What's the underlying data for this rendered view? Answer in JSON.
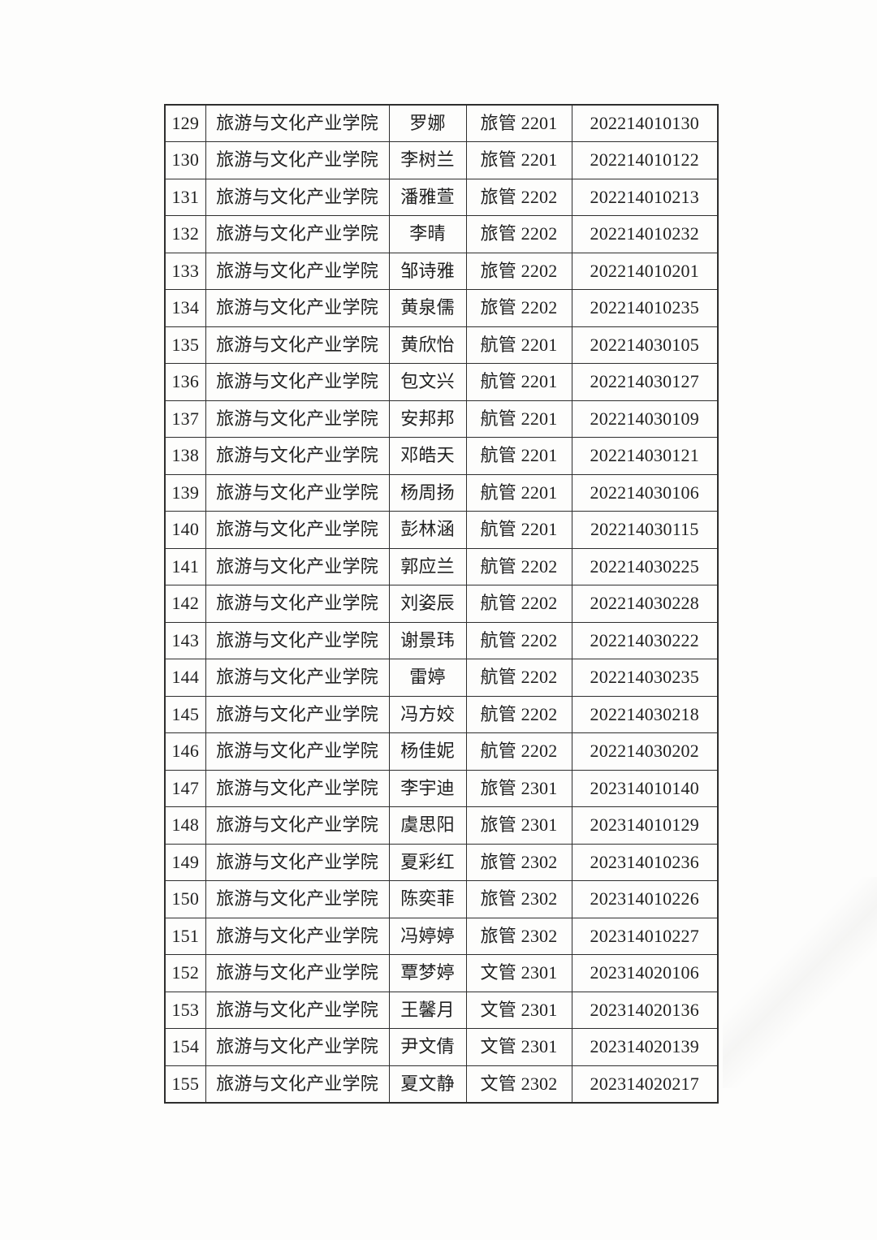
{
  "document": {
    "background_color": "#fdfdfc",
    "text_color": "#212121",
    "border_color": "#2e2e2e"
  },
  "table": {
    "column_keys": [
      "index",
      "college",
      "name",
      "class_name",
      "student_id"
    ],
    "rows": [
      {
        "index": "129",
        "college": "旅游与文化产业学院",
        "name": "罗娜",
        "class_name": "旅管 2201",
        "student_id": "202214010130"
      },
      {
        "index": "130",
        "college": "旅游与文化产业学院",
        "name": "李树兰",
        "class_name": "旅管 2201",
        "student_id": "202214010122"
      },
      {
        "index": "131",
        "college": "旅游与文化产业学院",
        "name": "潘雅萱",
        "class_name": "旅管 2202",
        "student_id": "202214010213"
      },
      {
        "index": "132",
        "college": "旅游与文化产业学院",
        "name": "李晴",
        "class_name": "旅管 2202",
        "student_id": "202214010232"
      },
      {
        "index": "133",
        "college": "旅游与文化产业学院",
        "name": "邹诗雅",
        "class_name": "旅管 2202",
        "student_id": "202214010201"
      },
      {
        "index": "134",
        "college": "旅游与文化产业学院",
        "name": "黄泉儒",
        "class_name": "旅管 2202",
        "student_id": "202214010235"
      },
      {
        "index": "135",
        "college": "旅游与文化产业学院",
        "name": "黄欣怡",
        "class_name": "航管 2201",
        "student_id": "202214030105"
      },
      {
        "index": "136",
        "college": "旅游与文化产业学院",
        "name": "包文兴",
        "class_name": "航管 2201",
        "student_id": "202214030127"
      },
      {
        "index": "137",
        "college": "旅游与文化产业学院",
        "name": "安邦邦",
        "class_name": "航管 2201",
        "student_id": "202214030109"
      },
      {
        "index": "138",
        "college": "旅游与文化产业学院",
        "name": "邓皓天",
        "class_name": "航管 2201",
        "student_id": "202214030121"
      },
      {
        "index": "139",
        "college": "旅游与文化产业学院",
        "name": "杨周扬",
        "class_name": "航管 2201",
        "student_id": "202214030106"
      },
      {
        "index": "140",
        "college": "旅游与文化产业学院",
        "name": "彭林涵",
        "class_name": "航管 2201",
        "student_id": "202214030115"
      },
      {
        "index": "141",
        "college": "旅游与文化产业学院",
        "name": "郭应兰",
        "class_name": "航管 2202",
        "student_id": "202214030225"
      },
      {
        "index": "142",
        "college": "旅游与文化产业学院",
        "name": "刘姿辰",
        "class_name": "航管 2202",
        "student_id": "202214030228"
      },
      {
        "index": "143",
        "college": "旅游与文化产业学院",
        "name": "谢景玮",
        "class_name": "航管 2202",
        "student_id": "202214030222"
      },
      {
        "index": "144",
        "college": "旅游与文化产业学院",
        "name": "雷婷",
        "class_name": "航管 2202",
        "student_id": "202214030235"
      },
      {
        "index": "145",
        "college": "旅游与文化产业学院",
        "name": "冯方姣",
        "class_name": "航管 2202",
        "student_id": "202214030218"
      },
      {
        "index": "146",
        "college": "旅游与文化产业学院",
        "name": "杨佳妮",
        "class_name": "航管 2202",
        "student_id": "202214030202"
      },
      {
        "index": "147",
        "college": "旅游与文化产业学院",
        "name": "李宇迪",
        "class_name": "旅管 2301",
        "student_id": "202314010140"
      },
      {
        "index": "148",
        "college": "旅游与文化产业学院",
        "name": "虞思阳",
        "class_name": "旅管 2301",
        "student_id": "202314010129"
      },
      {
        "index": "149",
        "college": "旅游与文化产业学院",
        "name": "夏彩红",
        "class_name": "旅管 2302",
        "student_id": "202314010236"
      },
      {
        "index": "150",
        "college": "旅游与文化产业学院",
        "name": "陈奕菲",
        "class_name": "旅管 2302",
        "student_id": "202314010226"
      },
      {
        "index": "151",
        "college": "旅游与文化产业学院",
        "name": "冯婷婷",
        "class_name": "旅管 2302",
        "student_id": "202314010227"
      },
      {
        "index": "152",
        "college": "旅游与文化产业学院",
        "name": "覃梦婷",
        "class_name": "文管 2301",
        "student_id": "202314020106"
      },
      {
        "index": "153",
        "college": "旅游与文化产业学院",
        "name": "王馨月",
        "class_name": "文管 2301",
        "student_id": "202314020136"
      },
      {
        "index": "154",
        "college": "旅游与文化产业学院",
        "name": "尹文倩",
        "class_name": "文管 2301",
        "student_id": "202314020139"
      },
      {
        "index": "155",
        "college": "旅游与文化产业学院",
        "name": "夏文静",
        "class_name": "文管 2302",
        "student_id": "202314020217"
      }
    ]
  }
}
